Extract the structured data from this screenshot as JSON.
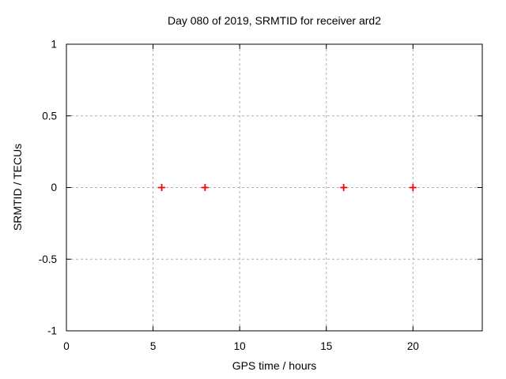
{
  "chart_data": {
    "type": "scatter",
    "title": "Day 080 of 2019, SRMTID for receiver ard2",
    "xlabel": "GPS time / hours",
    "ylabel": "SRMTID / TECUs",
    "xlim": [
      0,
      24
    ],
    "ylim": [
      -1,
      1
    ],
    "xticks": [
      0,
      5,
      10,
      15,
      20
    ],
    "xtick_labels": [
      "0",
      "5",
      "10",
      "15",
      "20"
    ],
    "yticks": [
      -1,
      -0.5,
      0,
      0.5,
      1
    ],
    "ytick_labels": [
      "-1",
      "-0.5",
      "0",
      "0.5",
      "1"
    ],
    "grid": true,
    "grid_style": "dashed",
    "legend": "none",
    "series": [
      {
        "name": "SRMTID",
        "marker": "plus",
        "color": "#ff0000",
        "points": [
          {
            "x": 5.5,
            "y": 0
          },
          {
            "x": 8.0,
            "y": 0
          },
          {
            "x": 16.0,
            "y": 0
          },
          {
            "x": 20.0,
            "y": 0
          }
        ]
      }
    ],
    "colors": {
      "background": "#ffffff",
      "border": "#000000",
      "grid": "#b0b0b0",
      "text": "#000000"
    }
  }
}
